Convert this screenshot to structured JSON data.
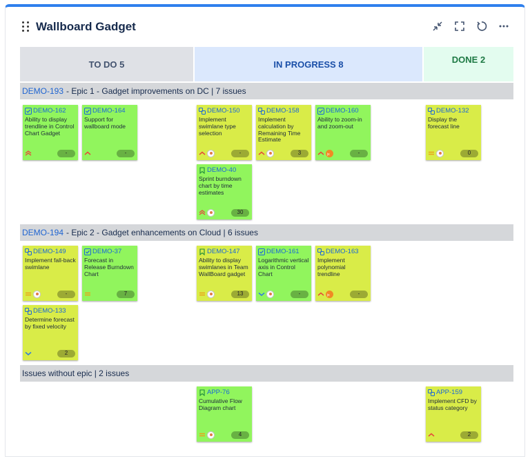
{
  "gadget": {
    "title": "Wallboard Gadget"
  },
  "columns": [
    {
      "label": "TO DO 5"
    },
    {
      "label": "IN PROGRESS 8"
    },
    {
      "label": "DONE 2"
    }
  ],
  "colors": {
    "todo_bg": "#dfe1e6",
    "inprogress_bg": "#dbe8fd",
    "done_bg": "#e3fcef",
    "card_green": "#91f55d",
    "card_yellow": "#d9ec48",
    "accent": "#2f80ed"
  },
  "epics": [
    {
      "key": "DEMO-193",
      "title": "- Epic 1 - Gadget improvements on DC | 7 issues"
    },
    {
      "key": "DEMO-194",
      "title": "- Epic 2 - Gadget enhancements on Cloud | 6 issues"
    },
    {
      "key": "",
      "title": "Issues without epic | 2 issues"
    }
  ],
  "cards": [
    {
      "key": "DEMO-162",
      "summary": "Ability to display trendline in Control Chart Gadget",
      "type": "task-icon",
      "priority": "highest-icon",
      "estimate": "-",
      "avatar": "none"
    },
    {
      "key": "DEMO-164",
      "summary": "Support for wallboard mode",
      "type": "task-icon",
      "priority": "high-icon",
      "estimate": "-",
      "avatar": "none"
    },
    {
      "key": "DEMO-150",
      "summary": "Implement swimlane type selection",
      "type": "subtask-icon",
      "priority": "high-icon",
      "estimate": "-",
      "avatar": "user"
    },
    {
      "key": "DEMO-158",
      "summary": "Implement calculation by Remaining Time Estimate",
      "type": "subtask-icon",
      "priority": "high-icon",
      "estimate": "3",
      "avatar": "user"
    },
    {
      "key": "DEMO-160",
      "summary": "Ability to zoom-in and zoom-out",
      "type": "task-icon",
      "priority": "high-icon",
      "estimate": "-",
      "avatar": "jx"
    },
    {
      "key": "DEMO-132",
      "summary": "Display the forecast line",
      "type": "subtask-icon",
      "priority": "medium-icon",
      "estimate": "0",
      "avatar": "user"
    },
    {
      "key": "DEMO-40",
      "summary": "Sprint burndown chart by time estimates",
      "type": "story-icon",
      "priority": "highest-icon",
      "estimate": "30",
      "avatar": "user"
    },
    {
      "key": "DEMO-149",
      "summary": "Implement fall-back swimlane",
      "type": "subtask-icon",
      "priority": "medium-icon",
      "estimate": "-",
      "avatar": "user"
    },
    {
      "key": "DEMO-37",
      "summary": "Forecast in Release Burndown Chart",
      "type": "task-icon",
      "priority": "medium-icon",
      "estimate": "7",
      "avatar": "none"
    },
    {
      "key": "DEMO-147",
      "summary": "Ability to display swimlanes in Team WallBoard gadget",
      "type": "story-icon",
      "priority": "medium-icon",
      "estimate": "13",
      "avatar": "user"
    },
    {
      "key": "DEMO-161",
      "summary": "Logarithmic vertical axis in Control Chart",
      "type": "task-icon",
      "priority": "low-icon",
      "estimate": "-",
      "avatar": "user"
    },
    {
      "key": "DEMO-163",
      "summary": "Implement polynomial trendline",
      "type": "subtask-icon",
      "priority": "high-icon",
      "estimate": "-",
      "avatar": "jx"
    },
    {
      "key": "DEMO-133",
      "summary": "Determine forecast by fixed velocity",
      "type": "subtask-icon",
      "priority": "low-icon",
      "estimate": "2",
      "avatar": "none"
    },
    {
      "key": "APP-76",
      "summary": "Cumulative Flow Diagram chart",
      "type": "story-icon",
      "priority": "medium-icon",
      "estimate": "4",
      "avatar": "user"
    },
    {
      "key": "APP-159",
      "summary": "Implement CFD by status category",
      "type": "subtask-icon",
      "priority": "high-icon",
      "estimate": "2",
      "avatar": "none"
    }
  ]
}
